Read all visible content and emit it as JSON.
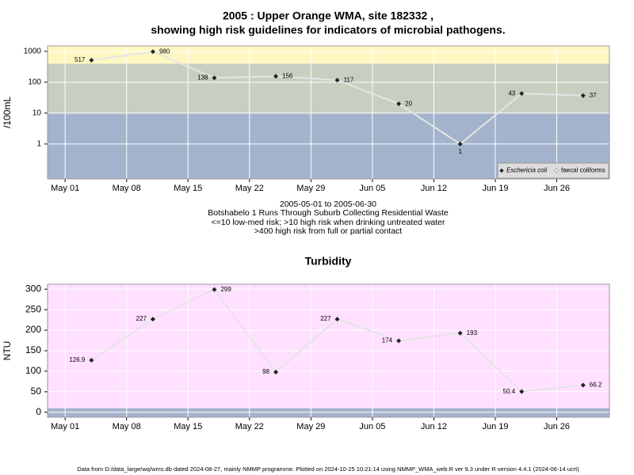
{
  "chart_data": [
    {
      "type": "line",
      "title": [
        "2005 : Upper Orange WMA, site 182332 ,",
        "showing high risk guidelines for indicators of microbial pathogens."
      ],
      "caption": [
        "2005-05-01 to 2005-06-30",
        "Botshabelo 1 Runs Through Suburb Collecting Residential Waste",
        "<=10 low-med risk; >10 high risk when drinking untreated water",
        ">400 high risk from full or partial contact"
      ],
      "y_label": "/100mL",
      "log_scale": true,
      "x": [
        "2005-05-04",
        "2005-05-11",
        "2005-05-18",
        "2005-05-25",
        "2005-06-01",
        "2005-06-08",
        "2005-06-15",
        "2005-06-22",
        "2005-06-29"
      ],
      "series": [
        {
          "name": "Eschericia coli",
          "color": "#222222",
          "values": [
            517,
            980,
            138,
            156,
            117,
            20,
            1,
            43,
            37
          ]
        },
        {
          "name": "faecal coliforms",
          "color": "#ffffff",
          "values": [
            null,
            null,
            null,
            null,
            null,
            null,
            null,
            null,
            null
          ]
        }
      ],
      "bands": [
        {
          "from": 0.074,
          "to": 10,
          "color": "#a3b3cc"
        },
        {
          "from": 10,
          "to": 400,
          "color": "#c7cfc1"
        },
        {
          "from": 400,
          "to": 1500,
          "color": "#fff7c2"
        }
      ],
      "xlim": [
        "2005-04-29",
        "2005-07-02"
      ],
      "xticks": [
        {
          "value": "2005-05-01",
          "label": "May 01"
        },
        {
          "value": "2005-05-08",
          "label": "May 08"
        },
        {
          "value": "2005-05-15",
          "label": "May 15"
        },
        {
          "value": "2005-05-22",
          "label": "May 22"
        },
        {
          "value": "2005-05-29",
          "label": "May 29"
        },
        {
          "value": "2005-06-05",
          "label": "Jun 05"
        },
        {
          "value": "2005-06-12",
          "label": "Jun 12"
        },
        {
          "value": "2005-06-19",
          "label": "Jun 19"
        },
        {
          "value": "2005-06-26",
          "label": "Jun 26"
        }
      ],
      "ylim": [
        0.074,
        1500
      ],
      "yticks": [
        1,
        10,
        100,
        1000
      ],
      "grid": true,
      "legend": "bottom-right"
    },
    {
      "type": "line",
      "title": "Turbidity",
      "y_label": "NTU",
      "x": [
        "2005-05-04",
        "2005-05-11",
        "2005-05-18",
        "2005-05-25",
        "2005-06-01",
        "2005-06-08",
        "2005-06-15",
        "2005-06-22",
        "2005-06-29"
      ],
      "values": [
        126.9,
        227,
        299,
        98,
        227,
        174,
        193,
        50.4,
        66.2
      ],
      "color": "#222222",
      "bands": [
        {
          "from": -12,
          "to": 10,
          "color": "#a3b3cc"
        },
        {
          "from": 10,
          "to": 312,
          "color": "#ffe0ff"
        }
      ],
      "xlim": [
        "2005-04-29",
        "2005-07-02"
      ],
      "xticks": [
        {
          "value": "2005-05-01",
          "label": "May 01"
        },
        {
          "value": "2005-05-08",
          "label": "May 08"
        },
        {
          "value": "2005-05-15",
          "label": "May 15"
        },
        {
          "value": "2005-05-22",
          "label": "May 22"
        },
        {
          "value": "2005-05-29",
          "label": "May 29"
        },
        {
          "value": "2005-06-05",
          "label": "Jun 05"
        },
        {
          "value": "2005-06-12",
          "label": "Jun 12"
        },
        {
          "value": "2005-06-19",
          "label": "Jun 19"
        },
        {
          "value": "2005-06-26",
          "label": "Jun 26"
        }
      ],
      "ylim": [
        -12,
        312
      ],
      "yticks": [
        0,
        50,
        100,
        150,
        200,
        250,
        300
      ],
      "grid": true
    }
  ],
  "footer": "Data from D:/data_large/wq/wms.db dated 2024-08-27, mainly NMMP programme. Plotted on 2024-10-25 10:21:14 using NMMP_WMA_web.R ver 9.3 under R version 4.4.1 (2024-06-14 ucrt)"
}
